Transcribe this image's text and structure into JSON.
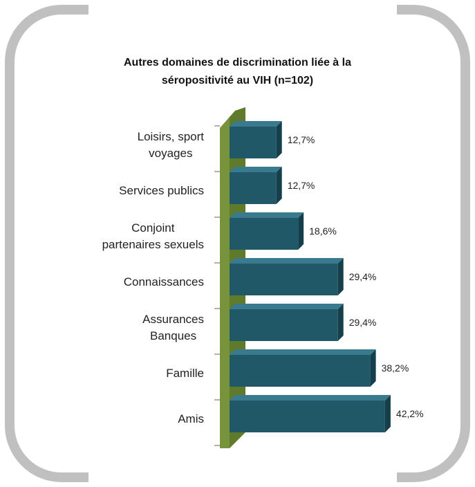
{
  "chart_data": {
    "type": "bar",
    "orientation": "horizontal",
    "title": "Autres domaines de discrimination liée à la\nséropositivité au VIH (n=102)",
    "categories": [
      "Loisirs, sport\nvoyages",
      "Services publics",
      "Conjoint\npartenaires sexuels",
      "Connaissances",
      "Assurances\nBanques",
      "Famille",
      "Amis"
    ],
    "values": [
      12.7,
      12.7,
      18.6,
      29.4,
      29.4,
      38.2,
      42.2
    ],
    "value_labels": [
      "12,7%",
      "12,7%",
      "18,6%",
      "29,4%",
      "29,4%",
      "38,2%",
      "42,2%"
    ],
    "color": "#215868"
  }
}
